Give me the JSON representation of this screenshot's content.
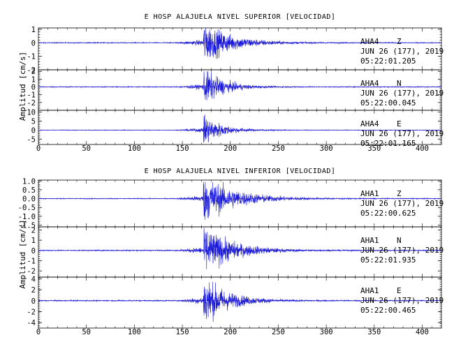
{
  "colors": {
    "trace": "#1a1adb",
    "axis": "#000000",
    "background": "#ffffff",
    "zero_line": "#b03060"
  },
  "chart_data": [
    {
      "type": "line",
      "title": "E HOSP ALAJUELA NIVEL SUPERIOR [VELOCIDAD]",
      "ylabel": "Amplitud [cm/s]",
      "xlim": [
        0,
        420
      ],
      "xticks": [
        "0",
        "50",
        "100",
        "150",
        "200",
        "250",
        "300",
        "350",
        "400"
      ],
      "panels": [
        {
          "station": "AHA4",
          "component": "Z",
          "date": "JUN 26 (177), 2019",
          "time": "05:22:01.205",
          "ylim": [
            -2,
            1.1
          ],
          "yticks": [
            {
              "v": 1,
              "label": "1"
            },
            {
              "v": 0,
              "label": "0"
            },
            {
              "v": -1,
              "label": "-1"
            },
            {
              "v": -2,
              "label": "-2"
            }
          ],
          "peak": 1.1,
          "trough": -1.8,
          "onset_s": 142,
          "arrival_s": 172,
          "coda_end_s": 300,
          "noise": 0.03
        },
        {
          "station": "AHA4",
          "component": "N",
          "date": "JUN 26 (177), 2019",
          "time": "05:22:00.045",
          "ylim": [
            -3,
            2.2
          ],
          "yticks": [
            {
              "v": 2,
              "label": "2"
            },
            {
              "v": 1,
              "label": "1"
            },
            {
              "v": 0,
              "label": "0"
            },
            {
              "v": -1,
              "label": "-1"
            },
            {
              "v": -2,
              "label": "-2"
            }
          ],
          "peak": 2.0,
          "trough": -2.6,
          "onset_s": 145,
          "arrival_s": 172,
          "coda_end_s": 260,
          "noise": 0.05
        },
        {
          "station": "AHA4",
          "component": "E",
          "date": "JUN 26 (177), 2019",
          "time": "05:22:01.165",
          "ylim": [
            -8,
            11
          ],
          "yticks": [
            {
              "v": 10,
              "label": "10"
            },
            {
              "v": 5,
              "label": "5"
            },
            {
              "v": 0,
              "label": "0"
            },
            {
              "v": -5,
              "label": "-5"
            }
          ],
          "peak": 9.5,
          "trough": -7.0,
          "onset_s": 145,
          "arrival_s": 172,
          "coda_end_s": 255,
          "noise": 0.15
        }
      ]
    },
    {
      "type": "line",
      "title": "E HOSP ALAJUELA NIVEL INFERIOR [VELOCIDAD]",
      "ylabel": "Amplitud [cm/s]",
      "xlim": [
        0,
        420
      ],
      "xticks": [
        "0",
        "50",
        "100",
        "150",
        "200",
        "250",
        "300",
        "350",
        "400"
      ],
      "panels": [
        {
          "station": "AHA1",
          "component": "Z",
          "date": "JUN 26 (177), 2019",
          "time": "05:22:00.625",
          "ylim": [
            -1.6,
            1.05
          ],
          "yticks": [
            {
              "v": 1.0,
              "label": "1.0"
            },
            {
              "v": 0.5,
              "label": "0.5"
            },
            {
              "v": 0.0,
              "label": "0.0"
            },
            {
              "v": -0.5,
              "label": "-0.5"
            },
            {
              "v": -1.0,
              "label": "-1.0"
            },
            {
              "v": -1.5,
              "label": "-1.5"
            }
          ],
          "peak": 0.95,
          "trough": -1.5,
          "onset_s": 142,
          "arrival_s": 172,
          "coda_end_s": 320,
          "noise": 0.02
        },
        {
          "station": "AHA1",
          "component": "N",
          "date": "JUN 26 (177), 2019",
          "time": "05:22:01.935",
          "ylim": [
            -2.6,
            2.3
          ],
          "yticks": [
            {
              "v": 2,
              "label": "2"
            },
            {
              "v": 1,
              "label": "1"
            },
            {
              "v": 0,
              "label": "0"
            },
            {
              "v": -1,
              "label": "-1"
            },
            {
              "v": -2,
              "label": "-2"
            }
          ],
          "peak": 2.2,
          "trough": -2.2,
          "onset_s": 145,
          "arrival_s": 172,
          "coda_end_s": 300,
          "noise": 0.05
        },
        {
          "station": "AHA1",
          "component": "E",
          "date": "JUN 26 (177), 2019",
          "time": "05:22:00.465",
          "ylim": [
            -5,
            4.3
          ],
          "yticks": [
            {
              "v": 4,
              "label": "4"
            },
            {
              "v": 2,
              "label": "2"
            },
            {
              "v": 0,
              "label": "0"
            },
            {
              "v": -2,
              "label": "-2"
            },
            {
              "v": -4,
              "label": "-4"
            }
          ],
          "peak": 3.8,
          "trough": -4.6,
          "onset_s": 145,
          "arrival_s": 172,
          "coda_end_s": 280,
          "noise": 0.1
        }
      ]
    }
  ]
}
